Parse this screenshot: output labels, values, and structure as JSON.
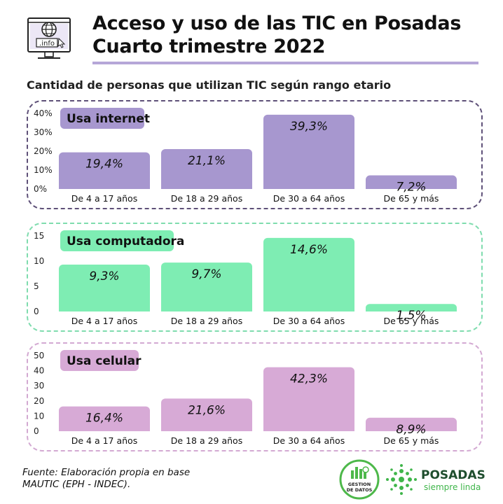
{
  "header": {
    "icon_text": ".info",
    "title_line1": "Acceso y uso de las TIC en Posadas",
    "title_line2": "Cuarto trimestre 2022",
    "subtitle": "Cantidad de personas que utilizan TIC según rango etario"
  },
  "colors": {
    "internet": "#a797cf",
    "computadora": "#7eedb3",
    "celular": "#d7aad6",
    "title_rule": "#b6a6d8"
  },
  "chart_data": [
    {
      "type": "bar",
      "title": "Usa internet",
      "categories": [
        "De 4 a 17 años",
        "De 18 a 29 años",
        "De 30 a 64 años",
        "De 65 y más"
      ],
      "values": [
        19.4,
        21.1,
        39.3,
        7.2
      ],
      "value_labels": [
        "19,4%",
        "21,1%",
        "39,3%",
        "7,2%"
      ],
      "yticks": [
        "0%",
        "10%",
        "20%",
        "30%",
        "40%"
      ],
      "ylim": [
        0,
        40
      ],
      "grid": false
    },
    {
      "type": "bar",
      "title": "Usa computadora",
      "categories": [
        "De 4 a 17 años",
        "De 18 a 29 años",
        "De 30 a 64 años",
        "De 65 y más"
      ],
      "values": [
        9.3,
        9.7,
        14.6,
        1.5
      ],
      "value_labels": [
        "9,3%",
        "9,7%",
        "14,6%",
        "1,5%"
      ],
      "yticks": [
        "0",
        "5",
        "10",
        "15"
      ],
      "ylim": [
        0,
        15
      ],
      "grid": false
    },
    {
      "type": "bar",
      "title": "Usa celular",
      "categories": [
        "De 4 a 17 años",
        "De 18 a 29 años",
        "De 30 a 64 años",
        "De 65 y más"
      ],
      "values": [
        16.4,
        21.6,
        42.3,
        8.9
      ],
      "value_labels": [
        "16,4%",
        "21,6%",
        "42,3%",
        "8,9%"
      ],
      "yticks": [
        "0",
        "10",
        "20",
        "30",
        "40",
        "50"
      ],
      "ylim": [
        0,
        50
      ],
      "grid": false
    }
  ],
  "footer": {
    "source_line1": "Fuente: Elaboración propia en base",
    "source_line2": "MAUTIC (EPH - INDEC).",
    "logo_gestion_line1": "GESTION",
    "logo_gestion_line2": "DE DATOS",
    "logo_posadas_name": "POSADAS",
    "logo_posadas_tagline": "siempre linda"
  }
}
